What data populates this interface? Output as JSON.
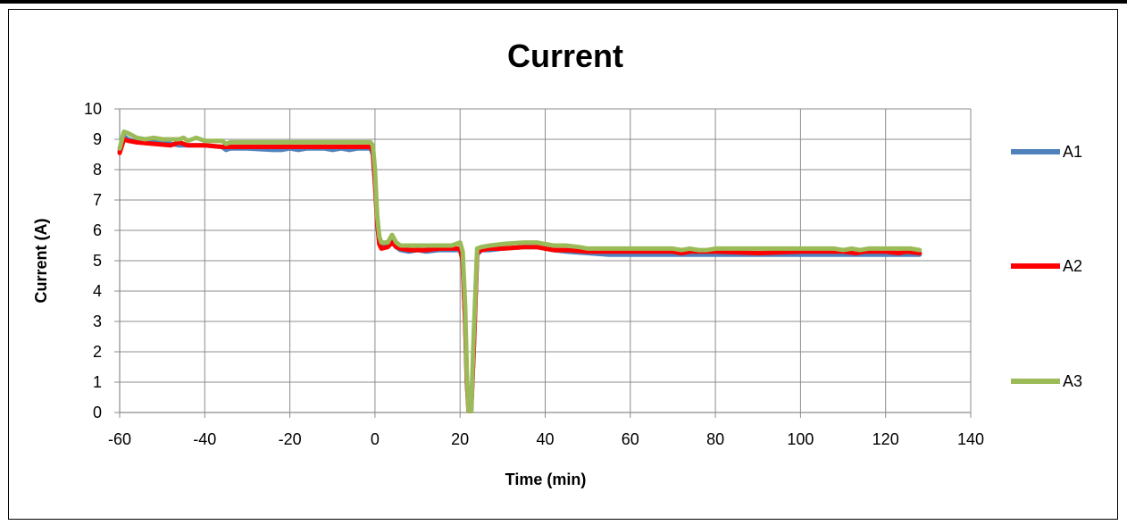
{
  "chart_data": {
    "type": "line",
    "title": "Current",
    "xlabel": "Time (min)",
    "ylabel": "Current (A)",
    "xlim": [
      -60,
      140
    ],
    "ylim": [
      0,
      10
    ],
    "xticks": [
      -60,
      -40,
      -20,
      0,
      20,
      40,
      60,
      80,
      100,
      120,
      140
    ],
    "yticks": [
      0,
      1,
      2,
      3,
      4,
      5,
      6,
      7,
      8,
      9,
      10
    ],
    "grid": true,
    "legend_position": "right",
    "series": [
      {
        "name": "A1",
        "color": "#4F81BD",
        "points": [
          [
            -60,
            8.6
          ],
          [
            -59,
            9.1
          ],
          [
            -58,
            9.0
          ],
          [
            -56,
            8.9
          ],
          [
            -50,
            8.9
          ],
          [
            -48,
            8.85
          ],
          [
            -46,
            8.8
          ],
          [
            -44,
            8.8
          ],
          [
            -40,
            8.8
          ],
          [
            -36,
            8.75
          ],
          [
            -35,
            8.65
          ],
          [
            -34,
            8.7
          ],
          [
            -30,
            8.7
          ],
          [
            -24,
            8.65
          ],
          [
            -22,
            8.65
          ],
          [
            -20,
            8.7
          ],
          [
            -18,
            8.65
          ],
          [
            -16,
            8.7
          ],
          [
            -12,
            8.7
          ],
          [
            -10,
            8.65
          ],
          [
            -8,
            8.7
          ],
          [
            -6,
            8.65
          ],
          [
            -4,
            8.7
          ],
          [
            -1,
            8.7
          ],
          [
            -0.5,
            8.5
          ],
          [
            0,
            7.5
          ],
          [
            0.5,
            6.3
          ],
          [
            1,
            5.6
          ],
          [
            1.5,
            5.45
          ],
          [
            3,
            5.5
          ],
          [
            4,
            5.65
          ],
          [
            5,
            5.45
          ],
          [
            6,
            5.35
          ],
          [
            8,
            5.3
          ],
          [
            10,
            5.35
          ],
          [
            12,
            5.3
          ],
          [
            15,
            5.35
          ],
          [
            18,
            5.35
          ],
          [
            20,
            5.35
          ],
          [
            20.6,
            5.0
          ],
          [
            21.2,
            3.0
          ],
          [
            21.6,
            1.0
          ],
          [
            22,
            0.05
          ],
          [
            22.6,
            0.05
          ],
          [
            23.2,
            2.0
          ],
          [
            24,
            5.2
          ],
          [
            25,
            5.35
          ],
          [
            27,
            5.35
          ],
          [
            30,
            5.4
          ],
          [
            35,
            5.45
          ],
          [
            38,
            5.45
          ],
          [
            40,
            5.4
          ],
          [
            42,
            5.35
          ],
          [
            45,
            5.3
          ],
          [
            50,
            5.25
          ],
          [
            55,
            5.2
          ],
          [
            60,
            5.2
          ],
          [
            70,
            5.2
          ],
          [
            80,
            5.2
          ],
          [
            90,
            5.2
          ],
          [
            100,
            5.2
          ],
          [
            110,
            5.2
          ],
          [
            120,
            5.2
          ],
          [
            125,
            5.2
          ],
          [
            128,
            5.2
          ]
        ]
      },
      {
        "name": "A2",
        "color": "#FF0000",
        "points": [
          [
            -60,
            8.55
          ],
          [
            -59,
            9.0
          ],
          [
            -58,
            8.95
          ],
          [
            -56,
            8.9
          ],
          [
            -52,
            8.85
          ],
          [
            -48,
            8.8
          ],
          [
            -46,
            8.9
          ],
          [
            -44,
            8.8
          ],
          [
            -40,
            8.8
          ],
          [
            -36,
            8.75
          ],
          [
            -34,
            8.75
          ],
          [
            -30,
            8.75
          ],
          [
            -20,
            8.75
          ],
          [
            -10,
            8.75
          ],
          [
            -5,
            8.75
          ],
          [
            -1,
            8.75
          ],
          [
            -0.5,
            8.6
          ],
          [
            0,
            7.6
          ],
          [
            0.5,
            6.3
          ],
          [
            1,
            5.55
          ],
          [
            1.5,
            5.4
          ],
          [
            3,
            5.45
          ],
          [
            4,
            5.6
          ],
          [
            5,
            5.45
          ],
          [
            6,
            5.4
          ],
          [
            8,
            5.35
          ],
          [
            10,
            5.35
          ],
          [
            12,
            5.35
          ],
          [
            15,
            5.4
          ],
          [
            18,
            5.4
          ],
          [
            20,
            5.4
          ],
          [
            20.6,
            5.0
          ],
          [
            21.2,
            3.0
          ],
          [
            21.6,
            1.0
          ],
          [
            22,
            0.05
          ],
          [
            22.6,
            0.05
          ],
          [
            23.2,
            2.0
          ],
          [
            24,
            5.25
          ],
          [
            25,
            5.35
          ],
          [
            27,
            5.4
          ],
          [
            30,
            5.4
          ],
          [
            35,
            5.45
          ],
          [
            38,
            5.45
          ],
          [
            40,
            5.4
          ],
          [
            42,
            5.35
          ],
          [
            45,
            5.35
          ],
          [
            50,
            5.3
          ],
          [
            55,
            5.3
          ],
          [
            60,
            5.3
          ],
          [
            70,
            5.3
          ],
          [
            72,
            5.25
          ],
          [
            74,
            5.3
          ],
          [
            80,
            5.3
          ],
          [
            90,
            5.25
          ],
          [
            100,
            5.3
          ],
          [
            110,
            5.3
          ],
          [
            113,
            5.25
          ],
          [
            115,
            5.3
          ],
          [
            120,
            5.3
          ],
          [
            123,
            5.25
          ],
          [
            125,
            5.3
          ],
          [
            128,
            5.25
          ]
        ]
      },
      {
        "name": "A3",
        "color": "#9BBB59",
        "points": [
          [
            -60,
            8.7
          ],
          [
            -59,
            9.25
          ],
          [
            -58,
            9.2
          ],
          [
            -56,
            9.05
          ],
          [
            -54,
            9.0
          ],
          [
            -52,
            9.05
          ],
          [
            -50,
            9.0
          ],
          [
            -46,
            9.0
          ],
          [
            -45,
            9.05
          ],
          [
            -44,
            8.95
          ],
          [
            -42,
            9.05
          ],
          [
            -40,
            8.95
          ],
          [
            -36,
            8.95
          ],
          [
            -35,
            8.85
          ],
          [
            -34,
            8.9
          ],
          [
            -30,
            8.9
          ],
          [
            -20,
            8.9
          ],
          [
            -10,
            8.9
          ],
          [
            -5,
            8.9
          ],
          [
            -1,
            8.9
          ],
          [
            -0.5,
            8.8
          ],
          [
            0,
            8.0
          ],
          [
            0.5,
            6.5
          ],
          [
            1,
            5.8
          ],
          [
            1.5,
            5.6
          ],
          [
            3,
            5.6
          ],
          [
            4,
            5.85
          ],
          [
            5,
            5.6
          ],
          [
            6,
            5.5
          ],
          [
            8,
            5.5
          ],
          [
            10,
            5.5
          ],
          [
            15,
            5.5
          ],
          [
            18,
            5.5
          ],
          [
            20,
            5.6
          ],
          [
            20.6,
            5.3
          ],
          [
            21.2,
            3.5
          ],
          [
            21.6,
            1.2
          ],
          [
            22,
            0.05
          ],
          [
            22.6,
            0.05
          ],
          [
            23.2,
            2.5
          ],
          [
            24,
            5.4
          ],
          [
            25,
            5.45
          ],
          [
            27,
            5.5
          ],
          [
            30,
            5.55
          ],
          [
            35,
            5.6
          ],
          [
            38,
            5.6
          ],
          [
            40,
            5.55
          ],
          [
            42,
            5.5
          ],
          [
            45,
            5.5
          ],
          [
            48,
            5.45
          ],
          [
            50,
            5.4
          ],
          [
            60,
            5.4
          ],
          [
            70,
            5.4
          ],
          [
            72,
            5.35
          ],
          [
            74,
            5.4
          ],
          [
            76,
            5.35
          ],
          [
            78,
            5.35
          ],
          [
            80,
            5.4
          ],
          [
            90,
            5.4
          ],
          [
            100,
            5.4
          ],
          [
            108,
            5.4
          ],
          [
            110,
            5.35
          ],
          [
            112,
            5.4
          ],
          [
            114,
            5.35
          ],
          [
            116,
            5.4
          ],
          [
            120,
            5.4
          ],
          [
            126,
            5.4
          ],
          [
            128,
            5.35
          ]
        ]
      }
    ]
  }
}
